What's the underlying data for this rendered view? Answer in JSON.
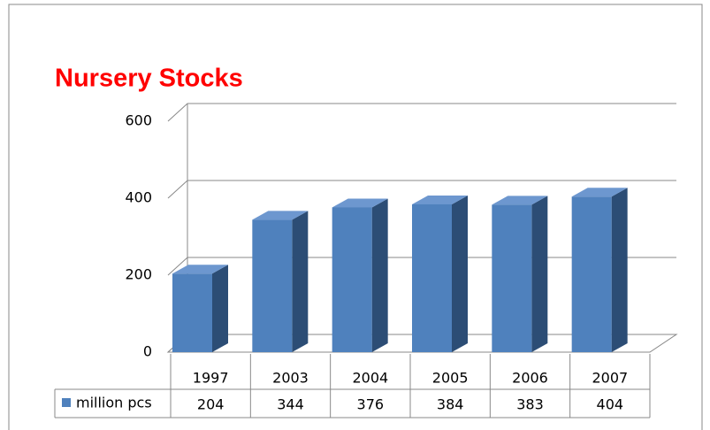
{
  "chart_data": {
    "type": "bar3d",
    "title": "Nursery Stocks",
    "categories": [
      "1997",
      "2003",
      "2004",
      "2005",
      "2006",
      "2007"
    ],
    "series": [
      {
        "name": "million pcs",
        "color": "#4f81bd",
        "values": [
          204,
          344,
          376,
          384,
          383,
          404
        ]
      }
    ],
    "ylim": [
      0,
      600
    ],
    "yticks": [
      0,
      200,
      400,
      600
    ],
    "grid": true,
    "data_table": true
  }
}
